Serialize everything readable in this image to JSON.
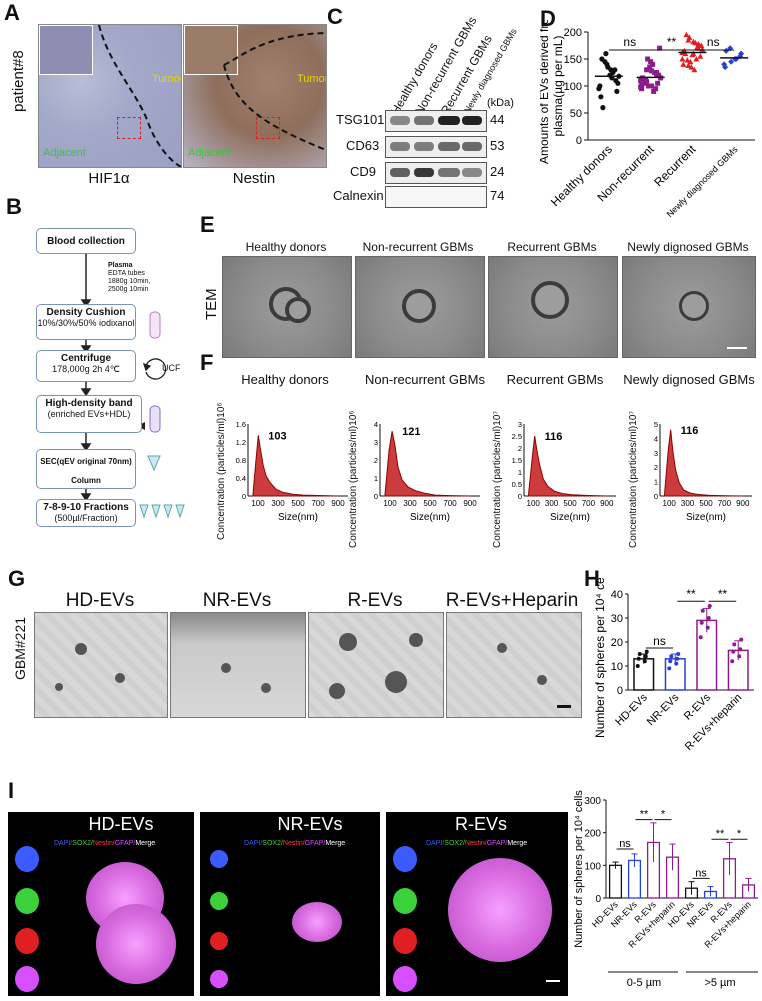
{
  "panels": {
    "A": "A",
    "B": "B",
    "C": "C",
    "D": "D",
    "E": "E",
    "F": "F",
    "G": "G",
    "H": "H",
    "I": "I"
  },
  "panel_a": {
    "row_label": "patient#8",
    "images": [
      {
        "caption": "HIF1α",
        "tumor": "Tumor",
        "adjacent": "Adjacent"
      },
      {
        "caption": "Nestin",
        "tumor": "Tumor",
        "adjacent": "Adjacent"
      }
    ]
  },
  "panel_b": {
    "steps": [
      {
        "title": "Blood collection",
        "detail": ""
      },
      {
        "title": "Density Cushion",
        "detail": "10%/30%/50% iodixanol"
      },
      {
        "title": "Centrifuge",
        "detail": "178,000g 2h 4℃"
      },
      {
        "title": "High-density band",
        "detail": "(enriched EVs+HDL)"
      },
      {
        "title": "SEC(qEV original 70nm) Column",
        "detail": ""
      },
      {
        "title": "7-8-9-10 Fractions",
        "detail": "(500µl/Fraction)"
      }
    ],
    "plasma_note": [
      "Plasma",
      "EDTA tubes",
      "1880g 10min,",
      "2500g 10min"
    ],
    "ucf": "UCF"
  },
  "panel_c": {
    "groups": [
      "Healthy donors",
      "Non-recurrent GBMs",
      "Recurrent GBMs",
      "Newly diagnosed GBMs"
    ],
    "kda_header": "(kDa)",
    "rows": [
      {
        "name": "TSG101",
        "kda": "44"
      },
      {
        "name": "CD63",
        "kda": "53"
      },
      {
        "name": "CD9",
        "kda": "24"
      },
      {
        "name": "Calnexin",
        "kda": "74"
      }
    ]
  },
  "panel_e": {
    "row_label": "TEM",
    "titles": [
      "Healthy donors",
      "Non-recurrent GBMs",
      "Recurrent GBMs",
      "Newly dignosed GBMs"
    ]
  },
  "panel_f": {
    "titles": [
      "Healthy donors",
      "Non-recurrent GBMs",
      "Recurrent GBMs",
      "Newly dignosed GBMs"
    ],
    "ylabels": [
      "Concentration (particles/ml)10⁶",
      "Concentration (particles/ml)10⁶",
      "Concentration (particles/ml)10⁷",
      "Concentration (particles/ml)10⁷"
    ]
  },
  "panel_g": {
    "row_label": "GBM#221",
    "titles": [
      "HD-EVs",
      "NR-EVs",
      "R-EVs",
      "R-EVs+Heparin"
    ]
  },
  "panel_i": {
    "titles": [
      "HD-EVs",
      "NR-EVs",
      "R-EVs"
    ],
    "legend": {
      "dapi": "DAPI/",
      "sox2": "SOX2/",
      "nestin": "Nestin/",
      "gfap": "GFAP/",
      "merge": "Merge"
    }
  },
  "colors": {
    "red": "#e02020",
    "blue": "#2a3fd6",
    "purple": "#8b1c8b",
    "black": "#111111"
  },
  "chart_data": [
    {
      "id": "D",
      "type": "scatter",
      "ylabel": "Amounts of EVs derived from plasma(µg per mL)",
      "ylim": [
        0,
        200
      ],
      "yticks": [
        0,
        50,
        100,
        150,
        200
      ],
      "categories": [
        "Healthy donors",
        "Non-recurrent",
        "Recurrent",
        "Newly diagnosed GBMs"
      ],
      "series": [
        {
          "values": [
            95,
            130,
            120,
            145,
            100,
            110,
            130,
            160,
            80,
            90,
            115,
            140,
            150,
            105,
            125,
            135,
            60,
            118
          ],
          "mean": 118
        },
        {
          "values": [
            110,
            125,
            100,
            130,
            95,
            105,
            140,
            150,
            115,
            120,
            90,
            100,
            110,
            170,
            125,
            135,
            105,
            115,
            95,
            145,
            112,
            98,
            120,
            128,
            108,
            102
          ],
          "mean": 116
        },
        {
          "values": [
            150,
            170,
            160,
            185,
            140,
            175,
            130,
            190,
            165,
            155,
            180,
            145,
            160,
            175,
            150,
            135,
            195,
            168,
            172,
            158,
            148,
            162,
            178,
            182,
            138
          ],
          "mean": 162
        },
        {
          "values": [
            140,
            155,
            150,
            170,
            135,
            160,
            150,
            145,
            165
          ],
          "mean": 152
        }
      ],
      "annotations": [
        "ns",
        "**",
        "ns"
      ]
    },
    {
      "id": "F1",
      "type": "line",
      "title": "Healthy donors",
      "xlabel": "Size(nm)",
      "xticks": [
        100,
        300,
        500,
        700,
        900
      ],
      "ylim": [
        0,
        1.6
      ],
      "yticks": [
        0,
        0.2,
        0.4,
        0.6,
        0.8,
        1.0,
        1.2,
        1.4,
        1.6
      ],
      "peak_label": "103",
      "x": [
        50,
        80,
        103,
        120,
        150,
        180,
        220,
        280,
        350,
        450,
        550,
        700,
        900
      ],
      "y": [
        0.05,
        0.8,
        1.35,
        1.1,
        0.7,
        0.45,
        0.3,
        0.15,
        0.08,
        0.04,
        0.02,
        0.01,
        0
      ]
    },
    {
      "id": "F2",
      "type": "line",
      "title": "Non-recurrent GBMs",
      "xlabel": "Size(nm)",
      "xticks": [
        100,
        300,
        500,
        700,
        900
      ],
      "ylim": [
        0,
        4.0
      ],
      "yticks": [
        0,
        0.5,
        1.0,
        1.5,
        2.0,
        2.5,
        3.0,
        3.5,
        4.0
      ],
      "peak_label": "121",
      "x": [
        50,
        90,
        121,
        150,
        180,
        220,
        280,
        350,
        450,
        550,
        700,
        900
      ],
      "y": [
        0.1,
        2.5,
        3.6,
        2.8,
        1.6,
        0.9,
        0.5,
        0.3,
        0.15,
        0.05,
        0.02,
        0
      ]
    },
    {
      "id": "F3",
      "type": "line",
      "title": "Recurrent GBMs",
      "xlabel": "Size(nm)",
      "xticks": [
        100,
        300,
        500,
        700,
        900
      ],
      "ylim": [
        0,
        3.0
      ],
      "yticks": [
        0,
        0.5,
        1.0,
        1.5,
        2.0,
        2.5,
        3.0
      ],
      "peak_label": "116",
      "x": [
        50,
        90,
        116,
        140,
        170,
        210,
        260,
        330,
        420,
        520,
        700,
        900
      ],
      "y": [
        0.1,
        1.6,
        2.5,
        1.9,
        1.3,
        0.7,
        0.4,
        0.2,
        0.1,
        0.05,
        0.02,
        0
      ]
    },
    {
      "id": "F4",
      "type": "line",
      "title": "Newly dignosed GBMs",
      "xlabel": "Size(nm)",
      "xticks": [
        100,
        300,
        500,
        700,
        900
      ],
      "ylim": [
        0,
        5.0
      ],
      "yticks": [
        0,
        0.5,
        1.0,
        1.5,
        2.0,
        2.5,
        3.0,
        3.5,
        4.0,
        4.5,
        5.0
      ],
      "peak_label": "116",
      "x": [
        50,
        90,
        116,
        140,
        170,
        210,
        260,
        330,
        420,
        520,
        700,
        900
      ],
      "y": [
        0.2,
        3.2,
        4.6,
        3.1,
        1.8,
        0.9,
        0.4,
        0.2,
        0.1,
        0.05,
        0.02,
        0
      ]
    },
    {
      "id": "H",
      "type": "bar",
      "ylabel": "Number of spheres per 10⁴ cells",
      "ylim": [
        0,
        40
      ],
      "yticks": [
        0,
        10,
        20,
        30,
        40
      ],
      "categories": [
        "HD-EVs",
        "NR-EVs",
        "R-EVs",
        "R-EVs+heparin"
      ],
      "values": [
        13,
        13,
        29,
        16.5
      ],
      "errors": [
        2,
        2,
        5,
        4
      ],
      "points": [
        [
          10,
          12,
          13,
          14,
          15,
          16
        ],
        [
          9,
          11,
          12,
          13,
          14,
          15
        ],
        [
          22,
          26,
          28,
          30,
          33,
          35
        ],
        [
          12,
          14,
          16,
          17,
          19,
          21
        ]
      ],
      "bar_colors": [
        "#111111",
        "#2a3fd6",
        "#8b1c8b",
        "#8b1c8b"
      ],
      "annotations": [
        "ns",
        "**",
        "**"
      ]
    },
    {
      "id": "I",
      "type": "bar",
      "ylabel": "Number of spheres per 10⁴ cells",
      "ylim": [
        0,
        300
      ],
      "yticks": [
        0,
        100,
        200,
        300
      ],
      "categories": [
        "HD-EVs",
        "NR-EVs",
        "R-EVs",
        "R-EVs+heparin",
        "HD-EVs",
        "NR-EVs",
        "R-EVs",
        "R-EVs+heparin"
      ],
      "values": [
        100,
        115,
        170,
        125,
        30,
        20,
        120,
        40
      ],
      "errors": [
        10,
        20,
        60,
        40,
        20,
        15,
        50,
        20
      ],
      "bar_colors": [
        "#111111",
        "#2a3fd6",
        "#8b1c8b",
        "#8b1c8b",
        "#111111",
        "#2a3fd6",
        "#8b1c8b",
        "#8b1c8b"
      ],
      "group_labels": [
        "0-5 µm",
        ">5 µm"
      ],
      "annotations": [
        "ns",
        "**",
        "*",
        "ns",
        "**",
        "*"
      ]
    }
  ]
}
